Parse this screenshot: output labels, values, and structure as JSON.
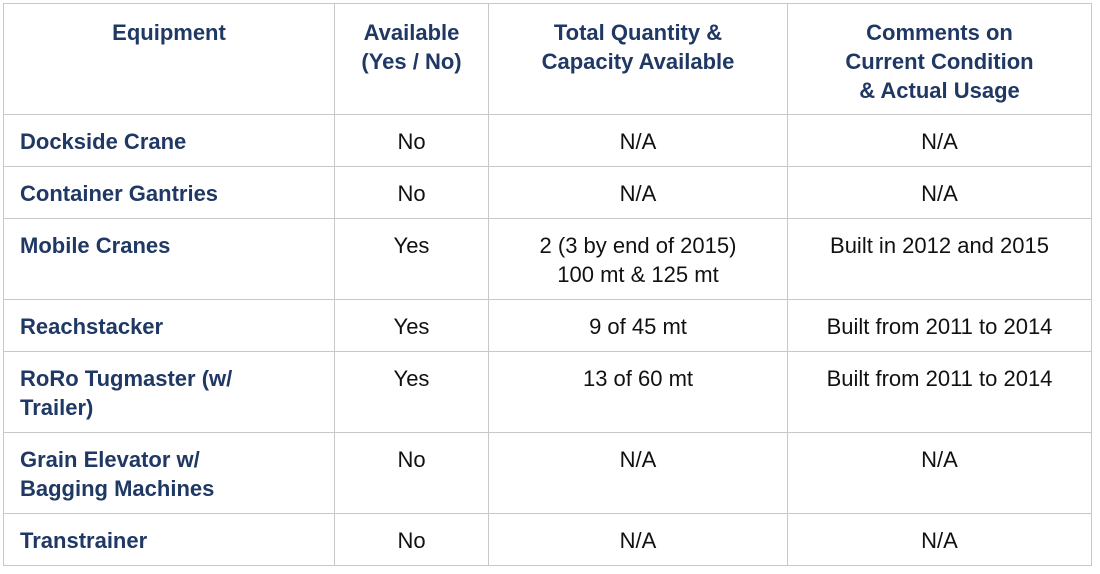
{
  "table": {
    "headers": {
      "equipment": [
        "Equipment"
      ],
      "available": [
        "Available",
        "(Yes / No)"
      ],
      "quantity": [
        "Total Quantity &",
        "Capacity Available"
      ],
      "comments": [
        "Comments on",
        "Current Condition",
        "& Actual Usage"
      ]
    },
    "rows": [
      {
        "equipment": [
          "Dockside Crane"
        ],
        "available": "No",
        "quantity": [
          "N/A"
        ],
        "comments": "N/A"
      },
      {
        "equipment": [
          "Container Gantries"
        ],
        "available": "No",
        "quantity": [
          "N/A"
        ],
        "comments": "N/A"
      },
      {
        "equipment": [
          "Mobile Cranes"
        ],
        "available": "Yes",
        "quantity": [
          "2 (3 by end of 2015)",
          "100 mt & 125 mt"
        ],
        "comments": "Built in 2012 and 2015"
      },
      {
        "equipment": [
          "Reachstacker"
        ],
        "available": "Yes",
        "quantity": [
          "9 of 45 mt"
        ],
        "comments": "Built from 2011 to 2014"
      },
      {
        "equipment": [
          "RoRo Tugmaster (w/",
          "Trailer)"
        ],
        "available": "Yes",
        "quantity": [
          "13 of 60 mt"
        ],
        "comments": "Built from 2011 to 2014"
      },
      {
        "equipment": [
          "Grain Elevator w/",
          "Bagging Machines"
        ],
        "available": "No",
        "quantity": [
          "N/A"
        ],
        "comments": "N/A"
      },
      {
        "equipment": [
          "Transtrainer"
        ],
        "available": "No",
        "quantity": [
          "N/A"
        ],
        "comments": "N/A"
      }
    ]
  },
  "colors": {
    "header_text": "#1f3864",
    "equipment_text": "#1f3864",
    "body_text": "#111111",
    "border": "#c8c8c8"
  }
}
